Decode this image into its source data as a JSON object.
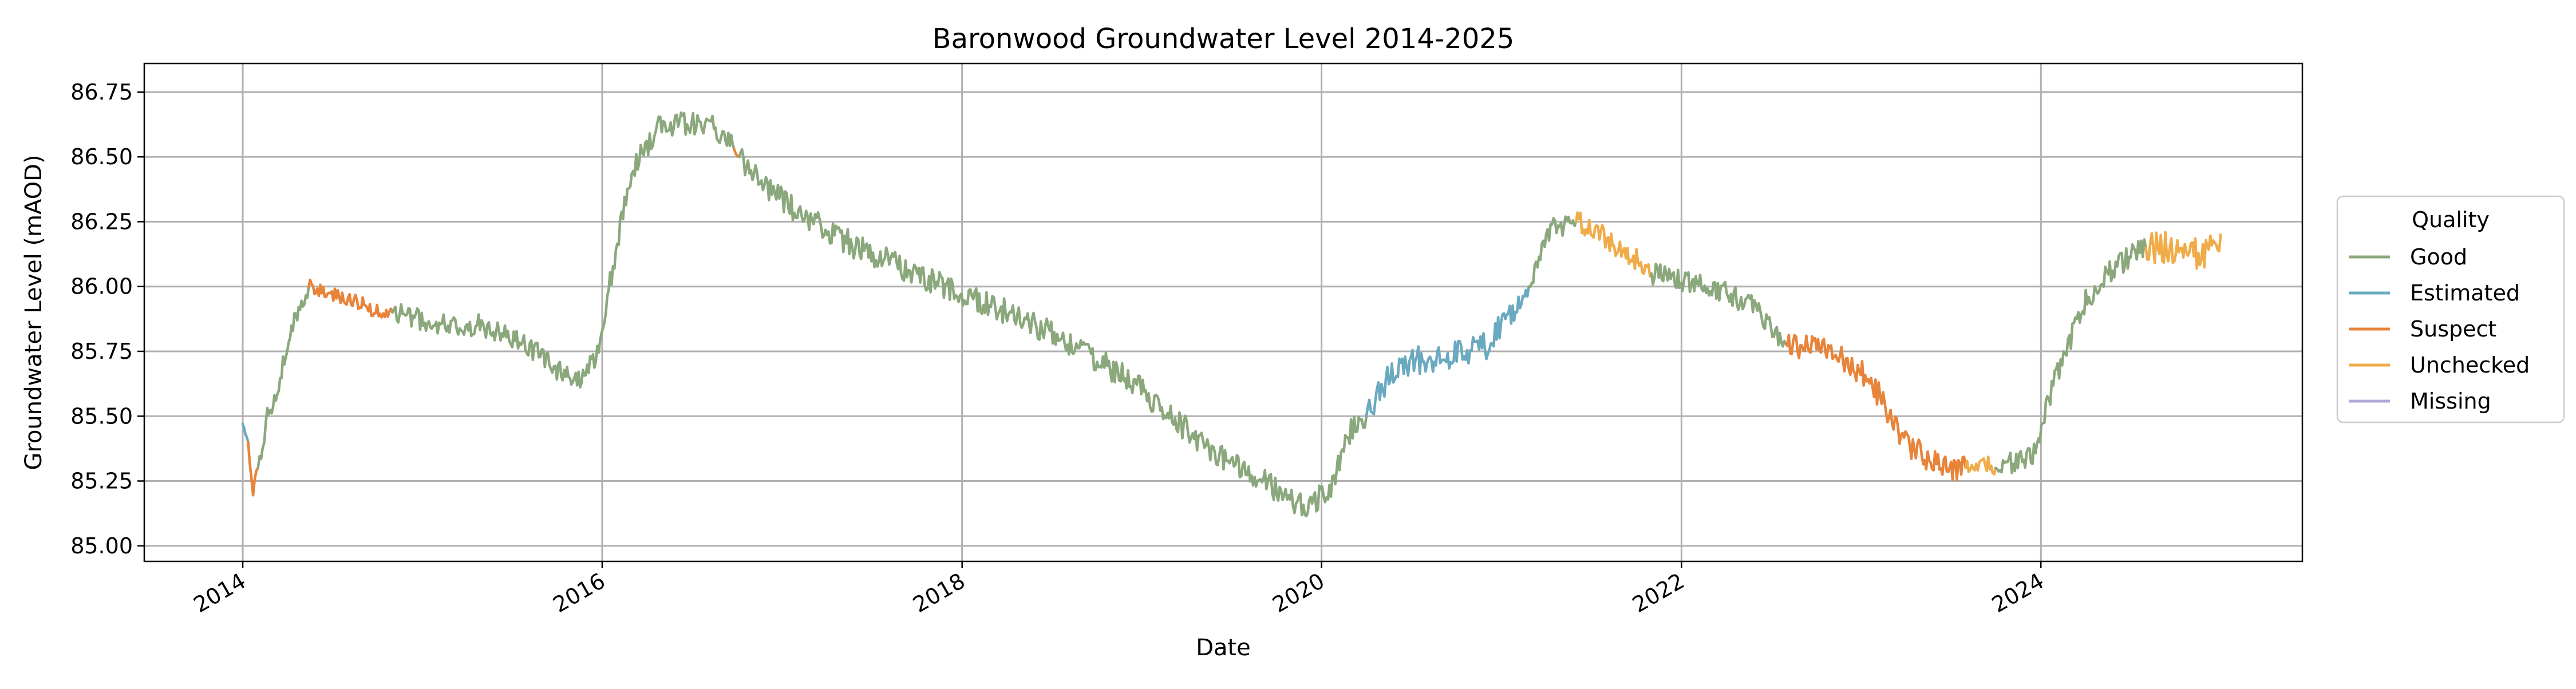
{
  "chart_data": {
    "type": "line",
    "title": "Baronwood Groundwater Level 2014-2025",
    "xlabel": "Date",
    "ylabel": "Groundwater Level (mAOD)",
    "x_type": "date",
    "xlim": [
      "2013-06-15",
      "2025-06-15"
    ],
    "ylim": [
      84.94,
      86.86
    ],
    "xticks": [
      {
        "label": "2014",
        "date": "2014-01-01"
      },
      {
        "label": "2016",
        "date": "2016-01-01"
      },
      {
        "label": "2018",
        "date": "2018-01-01"
      },
      {
        "label": "2020",
        "date": "2020-01-01"
      },
      {
        "label": "2022",
        "date": "2022-01-01"
      },
      {
        "label": "2024",
        "date": "2024-01-01"
      }
    ],
    "yticks": [
      {
        "label": "85.00",
        "value": 85.0
      },
      {
        "label": "85.25",
        "value": 85.25
      },
      {
        "label": "85.50",
        "value": 85.5
      },
      {
        "label": "85.75",
        "value": 85.75
      },
      {
        "label": "86.00",
        "value": 86.0
      },
      {
        "label": "86.25",
        "value": 86.25
      },
      {
        "label": "86.50",
        "value": 86.5
      },
      {
        "label": "86.75",
        "value": 86.75
      }
    ],
    "grid": true,
    "legend": {
      "title": "Quality",
      "placement": "outside-right",
      "entries": [
        {
          "label": "Good",
          "color": "#8aa87c"
        },
        {
          "label": "Estimated",
          "color": "#6aaac0"
        },
        {
          "label": "Suspect",
          "color": "#e8833a"
        },
        {
          "label": "Unchecked",
          "color": "#f0ac48"
        },
        {
          "label": "Missing",
          "color": "#b3a7d6"
        }
      ]
    },
    "series": [
      {
        "name": "Estimated",
        "color": "#6aaac0",
        "noise": 0.012,
        "points": [
          [
            "2014-01-01",
            85.47
          ],
          [
            "2014-01-12",
            85.4
          ]
        ]
      },
      {
        "name": "Suspect",
        "color": "#e8833a",
        "noise": 0.025,
        "points": [
          [
            "2014-01-12",
            85.4
          ],
          [
            "2014-01-22",
            85.22
          ],
          [
            "2014-02-01",
            85.3
          ]
        ]
      },
      {
        "name": "Good",
        "color": "#8aa87c",
        "noise": 0.035,
        "points": [
          [
            "2014-02-01",
            85.3
          ],
          [
            "2014-02-20",
            85.5
          ],
          [
            "2014-03-15",
            85.62
          ],
          [
            "2014-04-10",
            85.85
          ],
          [
            "2014-05-15",
            86.0
          ]
        ]
      },
      {
        "name": "Suspect",
        "color": "#e8833a",
        "noise": 0.03,
        "points": [
          [
            "2014-05-15",
            86.0
          ],
          [
            "2014-07-01",
            85.97
          ],
          [
            "2014-08-15",
            85.95
          ],
          [
            "2014-10-01",
            85.9
          ],
          [
            "2014-11-01",
            85.9
          ]
        ]
      },
      {
        "name": "Good",
        "color": "#8aa87c",
        "noise": 0.045,
        "points": [
          [
            "2014-11-01",
            85.9
          ],
          [
            "2015-02-01",
            85.85
          ],
          [
            "2015-05-01",
            85.85
          ],
          [
            "2015-08-01",
            85.78
          ],
          [
            "2015-10-01",
            85.68
          ],
          [
            "2015-11-20",
            85.63
          ],
          [
            "2015-12-25",
            85.75
          ],
          [
            "2016-01-20",
            86.05
          ],
          [
            "2016-03-01",
            86.45
          ],
          [
            "2016-05-01",
            86.63
          ],
          [
            "2016-08-15",
            86.62
          ],
          [
            "2016-09-25",
            86.53
          ]
        ]
      },
      {
        "name": "Suspect",
        "color": "#e8833a",
        "noise": 0.008,
        "points": [
          [
            "2016-09-25",
            86.53
          ],
          [
            "2016-10-05",
            86.5
          ]
        ]
      },
      {
        "name": "Good",
        "color": "#8aa87c",
        "noise": 0.05,
        "points": [
          [
            "2016-10-05",
            86.5
          ],
          [
            "2017-01-01",
            86.33
          ],
          [
            "2017-06-01",
            86.15
          ],
          [
            "2017-12-01",
            86.0
          ],
          [
            "2018-06-01",
            85.85
          ],
          [
            "2018-12-01",
            85.65
          ],
          [
            "2019-06-01",
            85.35
          ],
          [
            "2019-12-01",
            85.15
          ],
          [
            "2020-01-20",
            85.22
          ],
          [
            "2020-03-01",
            85.45
          ],
          [
            "2020-04-01",
            85.5
          ]
        ]
      },
      {
        "name": "Estimated",
        "color": "#6aaac0",
        "noise": 0.055,
        "points": [
          [
            "2020-04-01",
            85.5
          ],
          [
            "2020-06-01",
            85.7
          ],
          [
            "2020-09-01",
            85.73
          ],
          [
            "2020-12-01",
            85.77
          ],
          [
            "2021-02-01",
            85.92
          ],
          [
            "2021-02-25",
            86.0
          ]
        ]
      },
      {
        "name": "Good",
        "color": "#8aa87c",
        "noise": 0.04,
        "points": [
          [
            "2021-02-25",
            86.0
          ],
          [
            "2021-04-10",
            86.22
          ],
          [
            "2021-06-01",
            86.25
          ]
        ]
      },
      {
        "name": "Unchecked",
        "color": "#f0ac48",
        "noise": 0.045,
        "points": [
          [
            "2021-06-01",
            86.25
          ],
          [
            "2021-09-01",
            86.15
          ],
          [
            "2021-11-01",
            86.05
          ]
        ]
      },
      {
        "name": "Good",
        "color": "#8aa87c",
        "noise": 0.045,
        "points": [
          [
            "2021-11-01",
            86.05
          ],
          [
            "2022-03-01",
            86.0
          ],
          [
            "2022-06-01",
            85.92
          ],
          [
            "2022-08-01",
            85.78
          ]
        ]
      },
      {
        "name": "Suspect",
        "color": "#e8833a",
        "noise": 0.05,
        "points": [
          [
            "2022-08-01",
            85.78
          ],
          [
            "2022-11-01",
            85.75
          ],
          [
            "2023-01-15",
            85.65
          ],
          [
            "2023-04-01",
            85.4
          ],
          [
            "2023-06-15",
            85.3
          ],
          [
            "2023-08-01",
            85.3
          ]
        ]
      },
      {
        "name": "Unchecked",
        "color": "#f0ac48",
        "noise": 0.03,
        "points": [
          [
            "2023-08-01",
            85.3
          ],
          [
            "2023-09-10",
            85.32
          ],
          [
            "2023-10-01",
            85.3
          ]
        ]
      },
      {
        "name": "Good",
        "color": "#8aa87c",
        "noise": 0.045,
        "points": [
          [
            "2023-10-01",
            85.3
          ],
          [
            "2023-12-15",
            85.35
          ],
          [
            "2024-02-01",
            85.65
          ],
          [
            "2024-04-01",
            85.95
          ],
          [
            "2024-06-01",
            86.08
          ],
          [
            "2024-08-01",
            86.15
          ]
        ]
      },
      {
        "name": "Unchecked",
        "color": "#f0ac48",
        "noise": 0.06,
        "points": [
          [
            "2024-08-01",
            86.15
          ],
          [
            "2024-10-01",
            86.15
          ],
          [
            "2024-12-01",
            86.12
          ],
          [
            "2024-12-31",
            86.2
          ]
        ]
      }
    ]
  }
}
